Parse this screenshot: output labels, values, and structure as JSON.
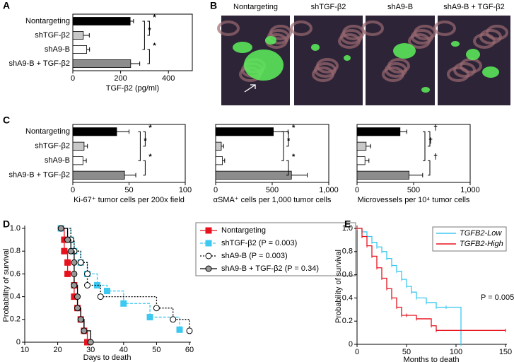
{
  "chart_data": [
    {
      "type": "hbar",
      "label": "A",
      "categories": [
        "Nontargeting",
        "shTGF-β2",
        "shA9-B",
        "shA9-B + TGF-β2"
      ],
      "values": [
        240,
        44,
        58,
        242
      ],
      "errors": [
        14,
        25,
        12,
        38
      ],
      "colors": [
        "#000000",
        "#c8c8c8",
        "#ffffff",
        "#8c8c8c"
      ],
      "xlim": [
        0,
        500
      ],
      "xticks": [
        0,
        200,
        400
      ],
      "xlabel": "TGF-β2 (pg/ml)",
      "annotations": [
        "*",
        "*",
        "*"
      ]
    },
    {
      "type": "image",
      "label": "B",
      "labels": [
        "Nontargeting",
        "shTGF-β2",
        "shA9-B",
        "shA9-B + TGF-β2"
      ]
    },
    {
      "type": "hbar",
      "label": "C",
      "categories": [
        "Nontargeting",
        "shTGF-β2",
        "shA9-B",
        "shA9-B + TGF-β2"
      ],
      "values": [
        39,
        10,
        9,
        46
      ],
      "errors": [
        11,
        3,
        3,
        10
      ],
      "colors": [
        "#000000",
        "#c8c8c8",
        "#ffffff",
        "#8c8c8c"
      ],
      "xlim": [
        0,
        100
      ],
      "xticks": [
        0,
        50,
        100
      ],
      "xlabel": "Ki-67⁺ tumor cells per 200x field",
      "annotations": [
        "*",
        "*",
        "*"
      ]
    },
    {
      "type": "hbar",
      "values": [
        510,
        50,
        60,
        670
      ],
      "errors": [
        130,
        20,
        20,
        140
      ],
      "colors": [
        "#000000",
        "#c8c8c8",
        "#ffffff",
        "#8c8c8c"
      ],
      "xlim": [
        0,
        1000
      ],
      "xticks": [
        0,
        500,
        {
          "value": 1000,
          "label": "1,000"
        }
      ],
      "xlabel": "αSMA⁺ cells per 1,000 tumor cells",
      "annotations": [
        "*",
        "*",
        "*"
      ]
    },
    {
      "type": "hbar",
      "values": [
        380,
        80,
        70,
        460
      ],
      "errors": [
        60,
        40,
        35,
        120
      ],
      "colors": [
        "#000000",
        "#c8c8c8",
        "#ffffff",
        "#8c8c8c"
      ],
      "xlim": [
        0,
        1000
      ],
      "xticks": [
        0,
        500,
        {
          "value": 1000,
          "label": "1,000"
        }
      ],
      "xlabel": "Microvessels per 10⁴ tumor cells",
      "annotations": [
        "†",
        "†",
        "†"
      ]
    },
    {
      "type": "km",
      "label": "D",
      "xlim": [
        10,
        60
      ],
      "xticks": [
        10,
        20,
        30,
        40,
        50,
        60
      ],
      "ylim": [
        0,
        1
      ],
      "yticks": [
        0,
        0.2,
        0.4,
        0.6,
        0.8,
        {
          "value": 1,
          "label": "1.0"
        }
      ],
      "xlabel": "Days to death",
      "ylabel": "Probability of survival",
      "legend": "right",
      "series": [
        {
          "name": "Nontargeting",
          "color": "#e8121e",
          "dash": "none",
          "marker": "square",
          "marker_fill": "#e8121e",
          "x": [
            21,
            22,
            22,
            23,
            23,
            25,
            25,
            26,
            27,
            28,
            29
          ],
          "y": [
            1,
            0.9,
            0.8,
            0.7,
            0.6,
            0.5,
            0.4,
            0.3,
            0.2,
            0.1,
            0
          ]
        },
        {
          "name": "shTGF-β2 (P = 0.003)",
          "color": "#3cc8f0",
          "dash": "4,2",
          "marker": "square",
          "marker_fill": "#3cc8f0",
          "x": [
            21,
            24,
            25,
            27,
            29,
            32,
            35,
            40,
            48,
            57
          ],
          "y": [
            1,
            0.9,
            0.8,
            0.7,
            0.6,
            0.5,
            0.45,
            0.34,
            0.22,
            0.11
          ]
        },
        {
          "name": "shA9-B (P = 0.003)",
          "color": "#000000",
          "dash": "2,2",
          "marker": "circle",
          "marker_fill": "#ffffff",
          "x": [
            21,
            24,
            25,
            27,
            29,
            29,
            33,
            50,
            55,
            60
          ],
          "y": [
            1,
            0.9,
            0.8,
            0.7,
            0.6,
            0.5,
            0.4,
            0.3,
            0.2,
            0.1
          ]
        },
        {
          "name": "shA9-B + TGF-β2 (P = 0.34)",
          "color": "#000000",
          "dash": "none",
          "marker": "circle",
          "marker_fill": "#999999",
          "x": [
            21,
            23,
            24,
            25,
            25,
            25,
            26,
            26,
            27,
            28,
            30
          ],
          "y": [
            1,
            0.9,
            0.8,
            0.7,
            0.6,
            0.5,
            0.4,
            0.3,
            0.2,
            0.1,
            0
          ]
        }
      ]
    },
    {
      "type": "km",
      "label": "E",
      "xlim": [
        0,
        150
      ],
      "xticks": [
        0,
        50,
        100,
        150
      ],
      "ylim": [
        0,
        1
      ],
      "yticks": [
        0,
        0.2,
        0.4,
        0.6,
        0.8,
        {
          "value": 1,
          "label": "1.0"
        }
      ],
      "xlabel": "Months to death",
      "ylabel": "Probability of survival",
      "legend": "upper right",
      "annotations": [
        "P = 0.005"
      ],
      "series": [
        {
          "name": "TGFB2-Low",
          "color": "#3cc8f0",
          "dash": "none",
          "marker": "tick",
          "marker_fill": "#3cc8f0",
          "x": [
            0,
            5,
            10,
            15,
            20,
            25,
            30,
            35,
            40,
            45,
            50,
            55,
            60,
            70,
            80,
            90,
            105
          ],
          "y": [
            1,
            0.97,
            0.93,
            0.88,
            0.84,
            0.8,
            0.74,
            0.68,
            0.63,
            0.56,
            0.5,
            0.45,
            0.4,
            0.36,
            0.32,
            0.32,
            0
          ]
        },
        {
          "name": "TGFB2-High",
          "color": "#e8121e",
          "dash": "none",
          "marker": "tick",
          "marker_fill": "#e8121e",
          "x": [
            0,
            5,
            10,
            15,
            20,
            25,
            30,
            35,
            40,
            45,
            50,
            60,
            75,
            80,
            150
          ],
          "y": [
            1,
            0.93,
            0.85,
            0.76,
            0.66,
            0.57,
            0.48,
            0.4,
            0.32,
            0.25,
            0.25,
            0.22,
            0.16,
            0.12,
            0.12
          ]
        }
      ]
    }
  ]
}
